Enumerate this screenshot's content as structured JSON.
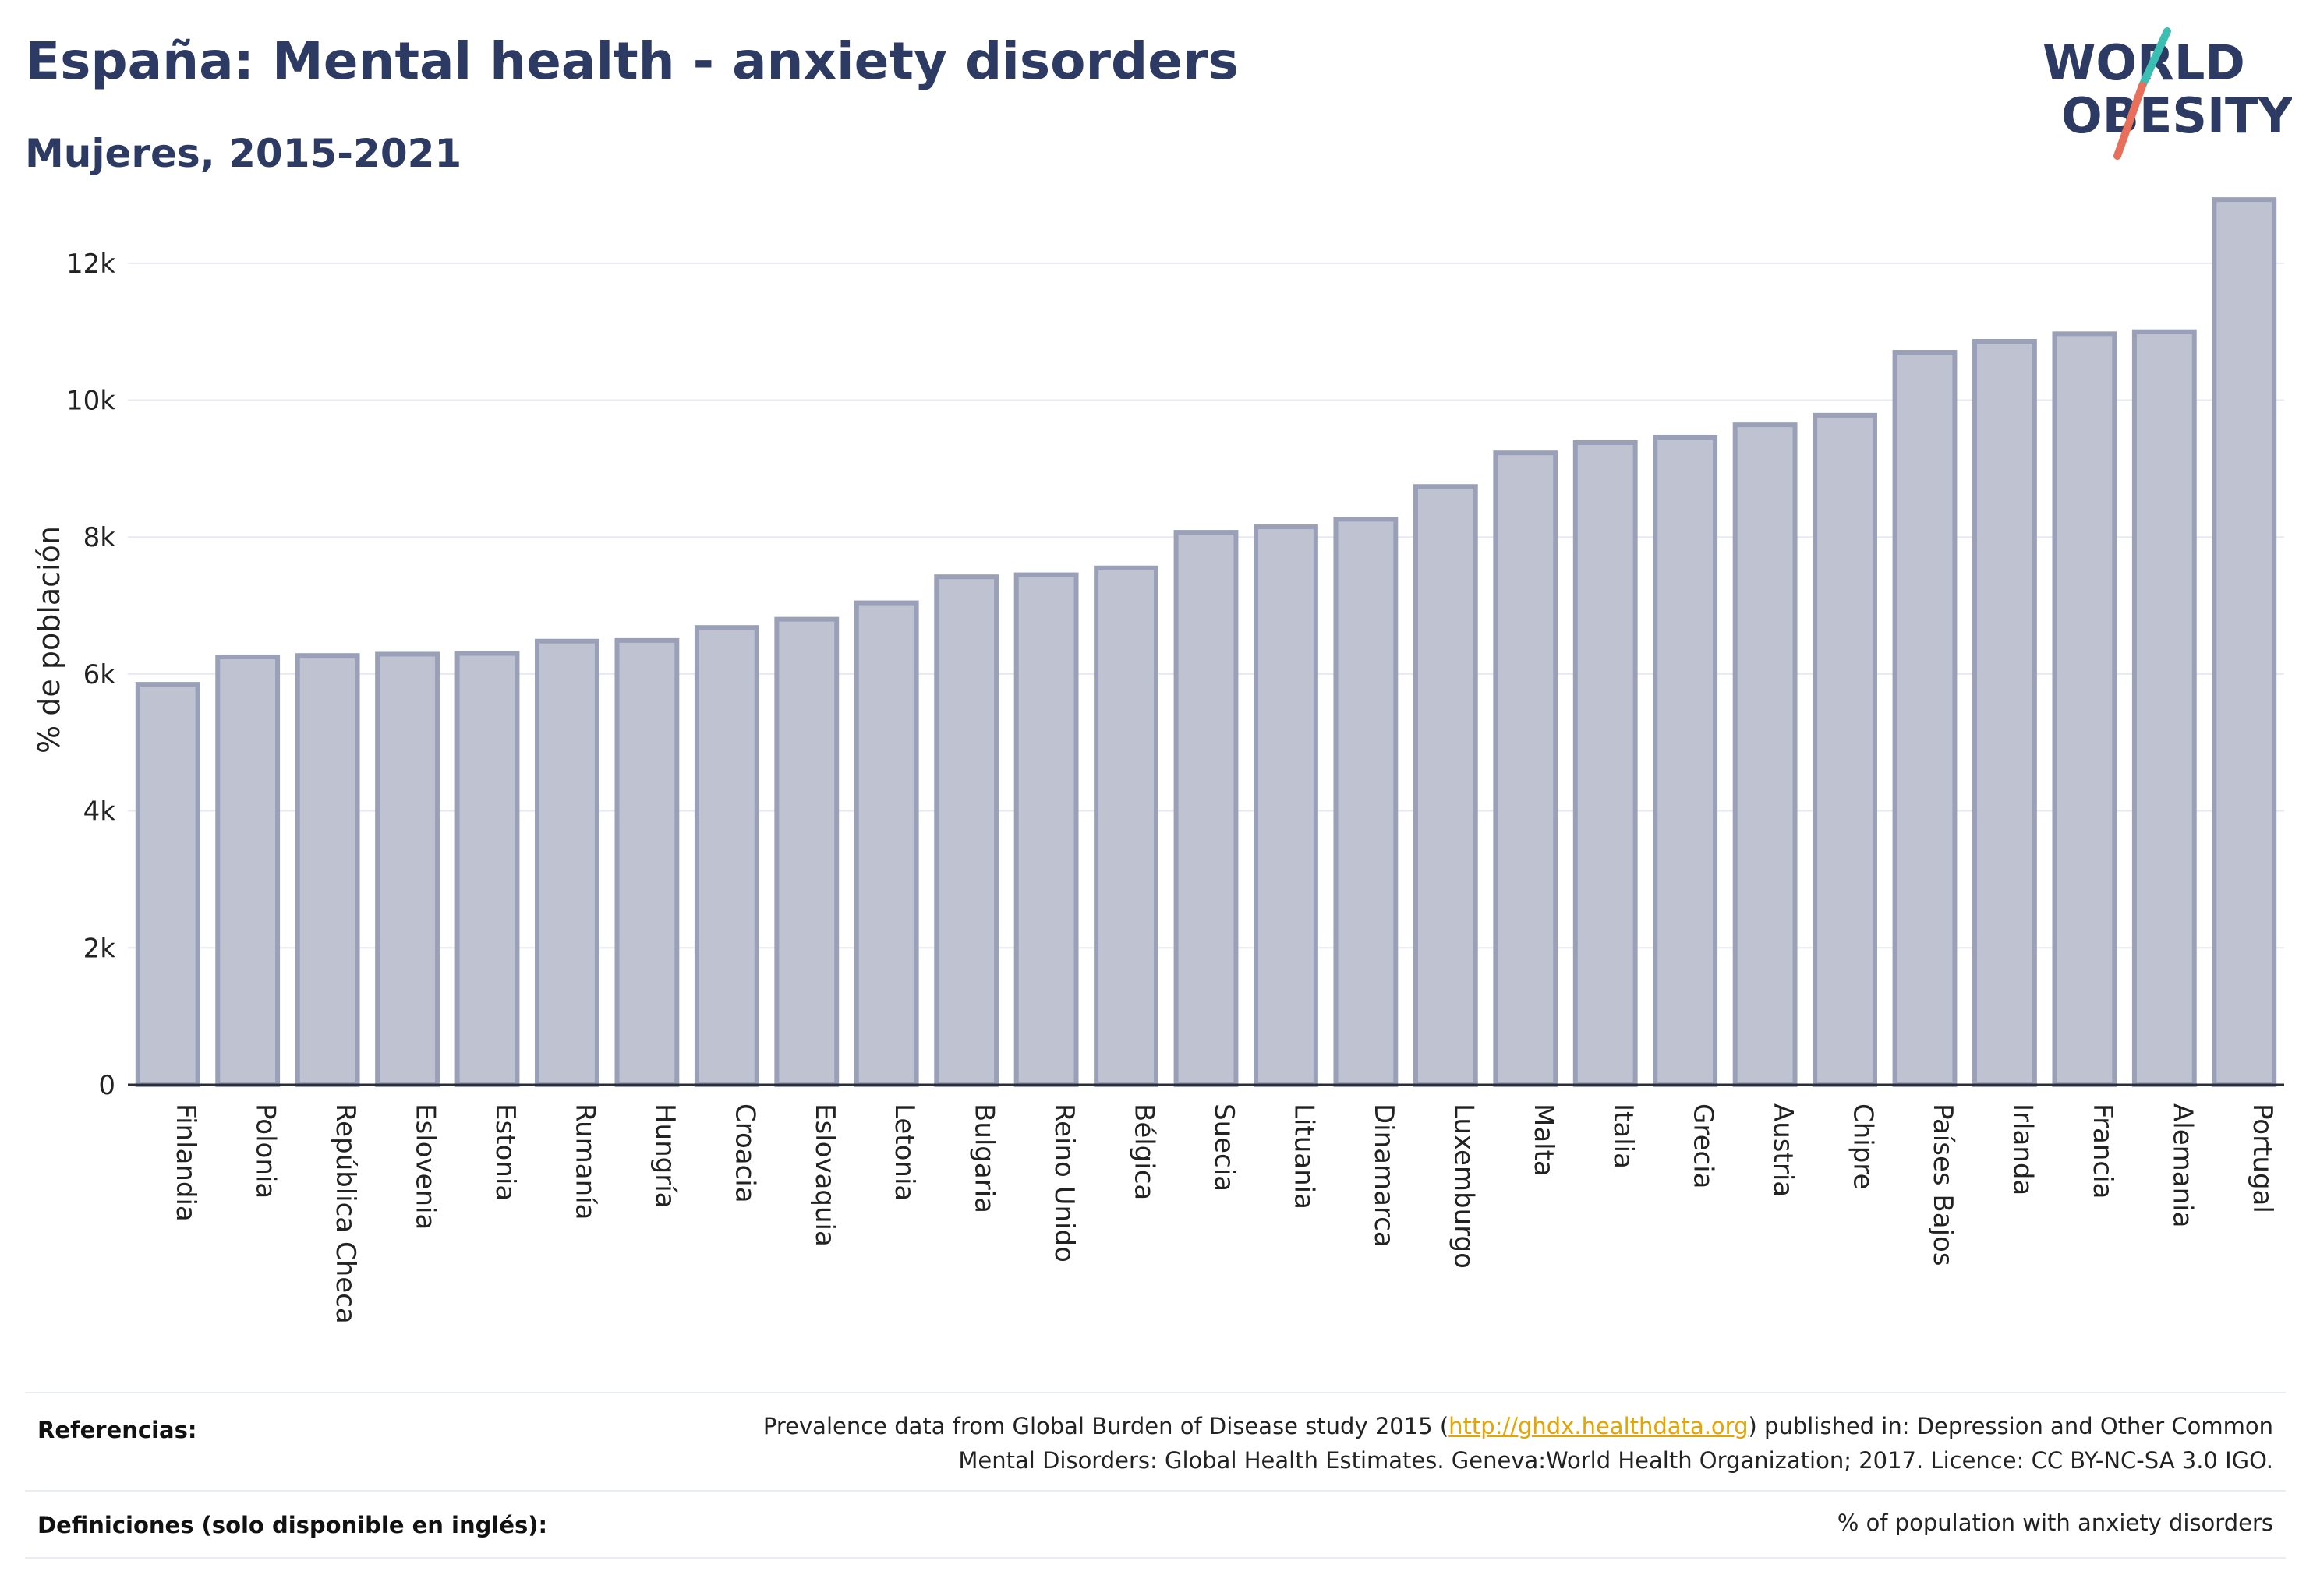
{
  "header": {
    "title": "España: Mental health - anxiety disorders",
    "subtitle": "Mujeres, 2015-2021"
  },
  "logo": {
    "line1": "WORLD",
    "line2": "OBESITY",
    "colors": {
      "text": "#2d3a63",
      "slash_top": "#3bbfb3",
      "slash_bottom": "#e8705a"
    }
  },
  "colors": {
    "bar_fill": "#bfc3d1",
    "bar_stroke": "#9aa0b8",
    "grid": "#e6e9f0",
    "axis": "#2a2e3a"
  },
  "chart_data": {
    "type": "bar",
    "ylabel": "% de población",
    "ylim": [
      0,
      13000
    ],
    "yticks": [
      0,
      2000,
      4000,
      6000,
      8000,
      10000,
      12000
    ],
    "ytick_labels": [
      "0",
      "2k",
      "4k",
      "6k",
      "8k",
      "10k",
      "12k"
    ],
    "grid": true,
    "categories": [
      "Finlandia",
      "Polonia",
      "República Checa",
      "Eslovenia",
      "Estonia",
      "Rumanía",
      "Hungría",
      "Croacia",
      "Eslovaquia",
      "Letonia",
      "Bulgaria",
      "Reino Unido",
      "Bélgica",
      "Suecia",
      "Lituania",
      "Dinamarca",
      "Luxemburgo",
      "Malta",
      "Italia",
      "Grecia",
      "Austria",
      "Chipre",
      "Países Bajos",
      "Irlanda",
      "Francia",
      "Alemania",
      "Portugal"
    ],
    "values": [
      5850,
      6250,
      6270,
      6290,
      6300,
      6480,
      6490,
      6680,
      6800,
      7040,
      7420,
      7450,
      7550,
      8070,
      8150,
      8260,
      8740,
      9230,
      9380,
      9460,
      9640,
      9780,
      10700,
      10860,
      10970,
      11000,
      12930
    ]
  },
  "footer": {
    "references_label": "Referencias:",
    "references_pre": "Prevalence data from Global Burden of Disease study 2015 (",
    "references_link": "http://ghdx.healthdata.org",
    "references_post": ") published in: Depression and Other Common",
    "references_line2": "Mental Disorders: Global Health Estimates. Geneva:World Health Organization; 2017. Licence: CC BY-NC-SA 3.0 IGO.",
    "definitions_label": "Definiciones (solo disponible en inglés):",
    "definitions_value": "% of population with anxiety disorders"
  }
}
